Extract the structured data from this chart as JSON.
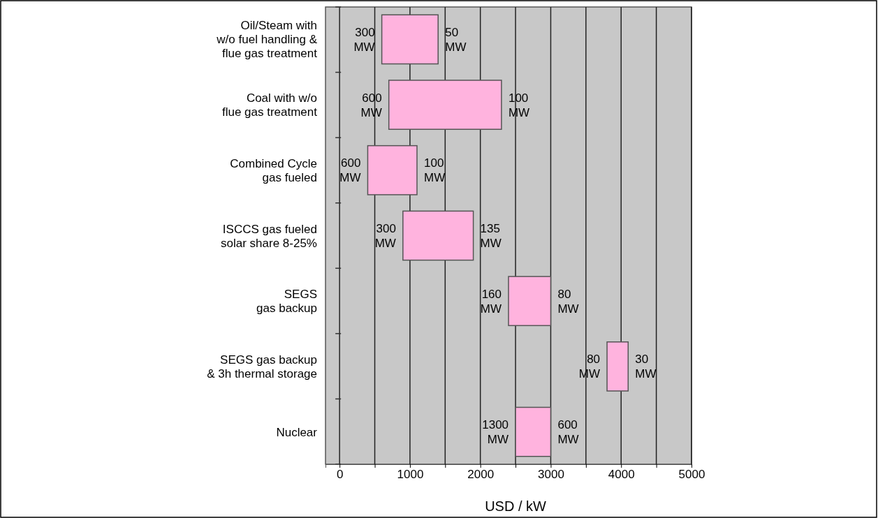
{
  "chart_data": {
    "type": "bar",
    "orientation": "horizontal",
    "xlabel": "USD / kW",
    "categories": [
      "Oil/Steam with\nw/o fuel handling &\nflue gas treatment",
      "Coal with w/o\nflue gas treatment",
      "Combined Cycle\ngas fueled",
      "ISCCS gas fueled\nsolar share 8-25%",
      "SEGS\ngas backup",
      "SEGS gas backup\n& 3h thermal storage",
      "Nuclear"
    ],
    "base": [
      600,
      700,
      400,
      900,
      2400,
      3800,
      2500
    ],
    "values": [
      800,
      1600,
      700,
      1000,
      600,
      300,
      500
    ],
    "color": "#ffb3de",
    "xlim": [
      -200,
      5000
    ],
    "xticks": [
      0,
      {
        "value": 500,
        "label": null
      },
      1000,
      {
        "value": 1500,
        "label": null
      },
      2000,
      {
        "value": 2500,
        "label": null
      },
      3000,
      {
        "value": 3500,
        "label": null
      },
      4000,
      {
        "value": 4500,
        "label": null
      },
      5000
    ],
    "grid": "x",
    "annotations": [
      {
        "text": "300 MW",
        "x": 600,
        "y": "Oil/Steam with\nw/o fuel handling &\nflue gas treatment"
      },
      {
        "text": "50 MW",
        "x": 1400,
        "y": "Oil/Steam with\nw/o fuel handling &\nflue gas treatment"
      },
      {
        "text": "600 MW",
        "x": 700,
        "y": "Coal with w/o\nflue gas treatment"
      },
      {
        "text": "100 MW",
        "x": 2300,
        "y": "Coal with w/o\nflue gas treatment"
      },
      {
        "text": "600 MW",
        "x": 400,
        "y": "Combined Cycle\ngas fueled"
      },
      {
        "text": "100 MW",
        "x": 1100,
        "y": "Combined Cycle\ngas fueled"
      },
      {
        "text": "300 MW",
        "x": 900,
        "y": "ISCCS gas fueled\nsolar share 8-25%"
      },
      {
        "text": "135 MW",
        "x": 1900,
        "y": "ISCCS gas fueled\nsolar share 8-25%"
      },
      {
        "text": "160 MW",
        "x": 2400,
        "y": "SEGS\ngas backup"
      },
      {
        "text": "80 MW",
        "x": 3000,
        "y": "SEGS\ngas backup"
      },
      {
        "text": "80 MW",
        "x": 3800,
        "y": "SEGS gas backup\n& 3h thermal storage"
      },
      {
        "text": "30 MW",
        "x": 4100,
        "y": "SEGS gas backup\n& 3h thermal storage"
      },
      {
        "text": "1300 MW",
        "x": 2500,
        "y": "Nuclear"
      },
      {
        "text": "600 MW",
        "x": 3000,
        "y": "Nuclear"
      }
    ]
  }
}
